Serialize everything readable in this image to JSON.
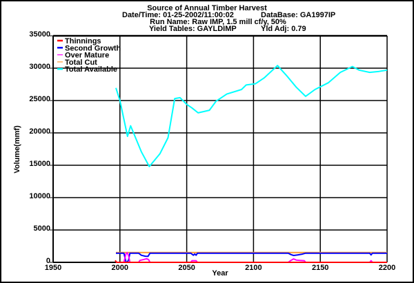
{
  "chart_data": {
    "type": "line",
    "title": "Source of Annual Timber Harvest",
    "subtitle_lines": [
      {
        "left": "Date/Time: 01-25-2002/11:00:02",
        "right": "DataBase: GA1997IP"
      },
      {
        "center": "Run Name: Raw IMP, 1.5 mill cf/y, 50%"
      },
      {
        "left": "Yield Tables: GAYLDIMP",
        "right": "Yld Adj: 0.79"
      }
    ],
    "xlabel": "Year",
    "ylabel": "Volume(mmf)",
    "xlim": [
      1950,
      2200
    ],
    "ylim": [
      0,
      35000
    ],
    "xticks": [
      1950,
      2000,
      2050,
      2100,
      2150,
      2200
    ],
    "yticks": [
      0,
      5000,
      10000,
      15000,
      20000,
      25000,
      30000,
      35000
    ],
    "grid": true,
    "legend_position": "top-left",
    "series": [
      {
        "name": "Thinnings",
        "color": "#ff0000",
        "points": [
          [
            1996.5,
            300
          ],
          [
            1997.5,
            0
          ],
          [
            2200,
            0
          ]
        ]
      },
      {
        "name": "Second Growth",
        "color": "#0000ff",
        "points": [
          [
            1997,
            1415
          ],
          [
            2003,
            1415
          ],
          [
            2004.5,
            100
          ],
          [
            2005.5,
            0
          ],
          [
            2006.5,
            400
          ],
          [
            2007.5,
            1415
          ],
          [
            2014,
            1415
          ],
          [
            2016,
            1100
          ],
          [
            2019,
            950
          ],
          [
            2021,
            930
          ],
          [
            2022.5,
            1415
          ],
          [
            2053,
            1415
          ],
          [
            2055,
            1100
          ],
          [
            2056,
            1300
          ],
          [
            2057,
            1100
          ],
          [
            2058,
            1415
          ],
          [
            2126,
            1415
          ],
          [
            2128,
            1200
          ],
          [
            2130,
            1060
          ],
          [
            2133,
            1150
          ],
          [
            2136,
            1250
          ],
          [
            2139,
            1415
          ],
          [
            2187,
            1415
          ],
          [
            2188,
            1150
          ],
          [
            2189,
            1415
          ],
          [
            2200,
            1415
          ]
        ]
      },
      {
        "name": "Over Mature",
        "color": "#ff00ff",
        "points": [
          [
            1997,
            0
          ],
          [
            2003,
            0
          ],
          [
            2004.5,
            1300
          ],
          [
            2005.5,
            1500
          ],
          [
            2006.5,
            1000
          ],
          [
            2007.5,
            0
          ],
          [
            2014,
            0
          ],
          [
            2015,
            300
          ],
          [
            2018,
            450
          ],
          [
            2020,
            560
          ],
          [
            2021.5,
            400
          ],
          [
            2022.5,
            0
          ],
          [
            2053,
            0
          ],
          [
            2054,
            250
          ],
          [
            2057,
            250
          ],
          [
            2058,
            0
          ],
          [
            2126,
            0
          ],
          [
            2128,
            300
          ],
          [
            2130,
            530
          ],
          [
            2132,
            350
          ],
          [
            2135,
            300
          ],
          [
            2138,
            250
          ],
          [
            2139,
            0
          ],
          [
            2187,
            0
          ],
          [
            2188,
            250
          ],
          [
            2189,
            0
          ],
          [
            2200,
            0
          ]
        ]
      },
      {
        "name": "Total Cut",
        "color": "#ff9933",
        "points": [
          [
            1997,
            1520
          ],
          [
            2200,
            1520
          ]
        ]
      },
      {
        "name": "Total Available",
        "color": "#00ffff",
        "points": [
          [
            1997,
            26950
          ],
          [
            2000,
            25000
          ],
          [
            2005.7,
            19470
          ],
          [
            2008,
            21100
          ],
          [
            2011,
            19600
          ],
          [
            2016,
            17100
          ],
          [
            2022,
            14800
          ],
          [
            2030,
            16800
          ],
          [
            2036,
            19250
          ],
          [
            2041,
            25300
          ],
          [
            2045,
            25450
          ],
          [
            2050,
            24400
          ],
          [
            2054,
            23850
          ],
          [
            2058.5,
            23100
          ],
          [
            2067,
            23500
          ],
          [
            2072,
            24900
          ],
          [
            2080,
            26000
          ],
          [
            2091,
            26700
          ],
          [
            2094.5,
            27400
          ],
          [
            2101.5,
            27600
          ],
          [
            2108,
            28500
          ],
          [
            2118,
            30400
          ],
          [
            2125,
            28800
          ],
          [
            2132,
            27050
          ],
          [
            2139,
            25650
          ],
          [
            2146,
            26700
          ],
          [
            2156,
            27750
          ],
          [
            2165,
            29350
          ],
          [
            2174,
            30250
          ],
          [
            2179,
            29700
          ],
          [
            2187,
            29350
          ],
          [
            2194,
            29500
          ],
          [
            2200,
            29700
          ]
        ]
      }
    ]
  }
}
